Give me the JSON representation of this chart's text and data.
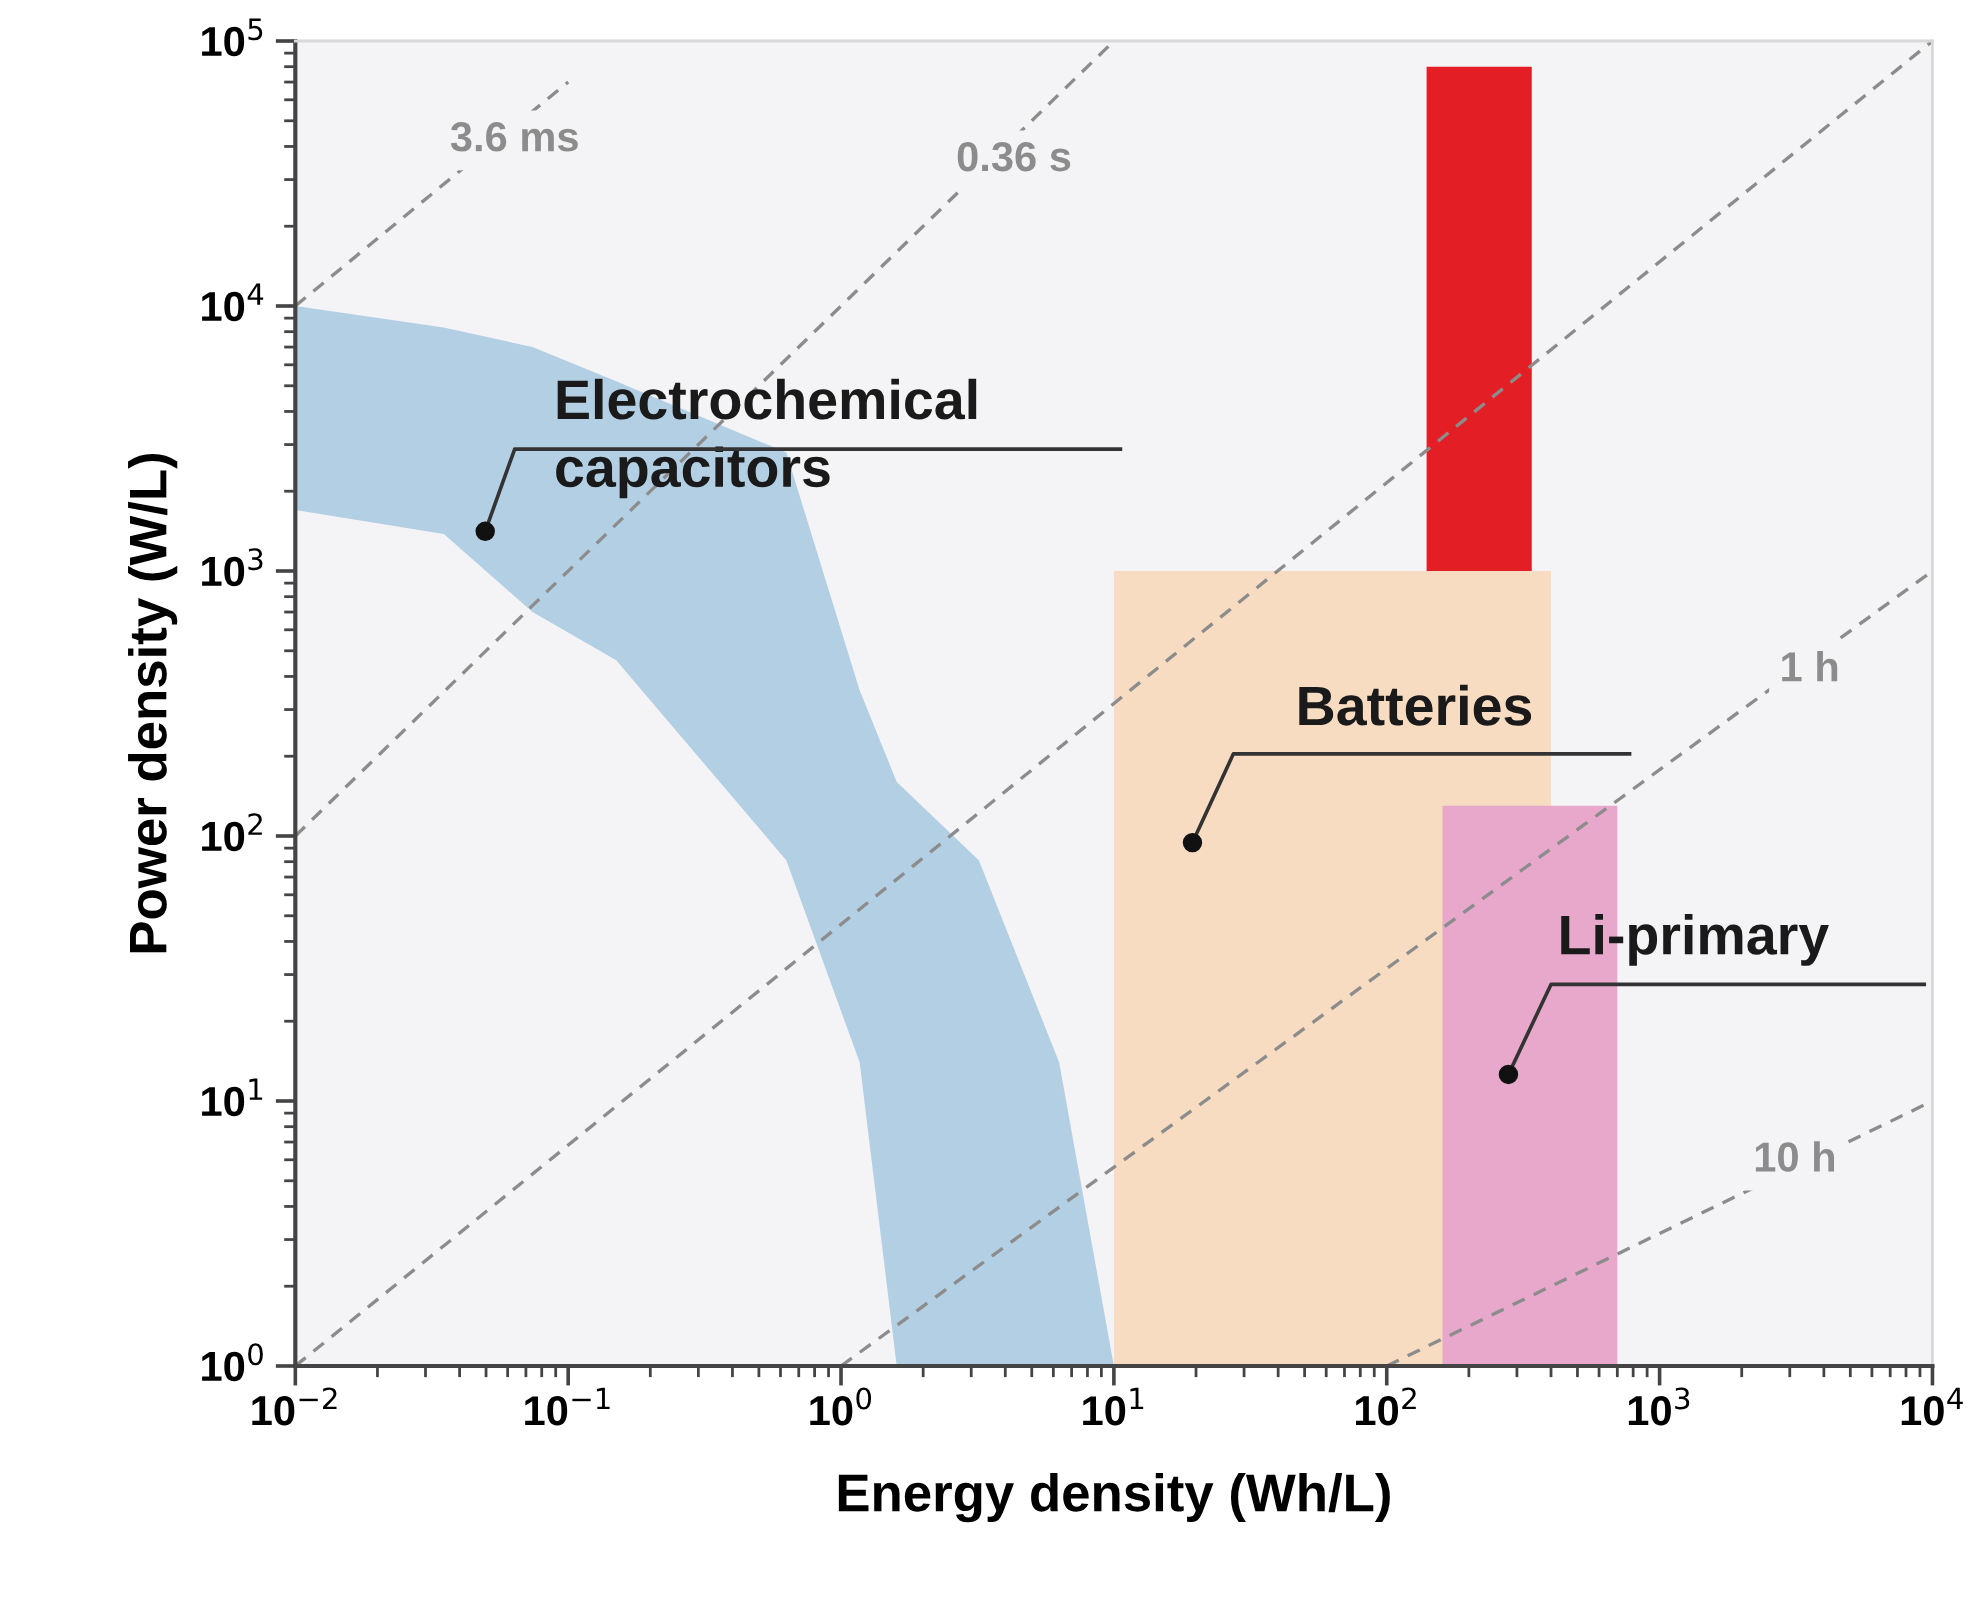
{
  "chart_data": {
    "type": "area",
    "xlabel": "Energy density (Wh/L)",
    "ylabel": "Power density (W/L)",
    "log": "xy",
    "grid": false,
    "xlim": [
      0.01,
      10000
    ],
    "ylim": [
      1,
      100000
    ],
    "xticks": [
      {
        "value": 0.01,
        "label": "10$^{−2}$"
      },
      {
        "value": 0.1,
        "label": "10$^{−1}$"
      },
      {
        "value": 1,
        "label": "10$^{0}$"
      },
      {
        "value": 10,
        "label": "10$^{1}$"
      },
      {
        "value": 100,
        "label": "10$^{2}$"
      },
      {
        "value": 1000,
        "label": "10$^{3}$"
      },
      {
        "value": 10000,
        "label": "10$^{4}$"
      }
    ],
    "yticks": [
      {
        "value": 1,
        "label": "10$^{0}$"
      },
      {
        "value": 10,
        "label": "10$^{1}$"
      },
      {
        "value": 100,
        "label": "10$^{2}$"
      },
      {
        "value": 1000,
        "label": "10$^{3}$"
      },
      {
        "value": 10000,
        "label": "10$^{4}$"
      },
      {
        "value": 100000,
        "label": "10$^{5}$"
      }
    ],
    "series": [
      {
        "name": "Electrochemical\ncapacitors",
        "color": "#b3cfe4",
        "x": [
          0.01,
          0.035,
          0.074,
          0.15,
          0.63,
          1.17,
          1.6,
          3.2,
          6.3,
          10
        ],
        "values": [
          10000,
          8300,
          7000,
          5200,
          2800,
          355,
          160,
          81,
          14,
          1
        ]
      },
      {
        "color": "#f4f4f6",
        "x": [
          0.01,
          0.035,
          0.074,
          0.15,
          0.63,
          1.17,
          1.6
        ],
        "values": [
          1700,
          1380,
          700,
          460,
          81,
          14,
          1
        ]
      },
      {
        "name": "Batteries",
        "color": "#f8dcc2",
        "x": [
          10,
          400
        ],
        "values": [
          1000,
          1000
        ]
      },
      {
        "name": "Li-primary",
        "color": "#e8a8cc",
        "x": [
          160,
          700
        ],
        "values": [
          130,
          130
        ]
      },
      {
        "name": "3.6 ms",
        "type": "line",
        "color": "#8c8c8c",
        "line_style": "dashed",
        "x": [
          0.01,
          0.1
        ],
        "values": [
          10000,
          70000
        ]
      },
      {
        "name": "0.36 s",
        "type": "line",
        "color": "#8c8c8c",
        "line_style": "dashed",
        "x": [
          0.01,
          10
        ],
        "values": [
          100,
          100000
        ]
      },
      {
        "type": "line",
        "color": "#8c8c8c",
        "line_style": "dashed",
        "x": [
          0.01,
          10000
        ],
        "values": [
          1,
          100000
        ]
      },
      {
        "name": "1 h",
        "type": "line",
        "color": "#8c8c8c",
        "line_style": "dashed",
        "x": [
          1,
          10000
        ],
        "values": [
          1,
          1000
        ]
      },
      {
        "name": "10 h",
        "type": "line",
        "color": "#8c8c8c",
        "line_style": "dashed",
        "x": [
          100,
          10000
        ],
        "values": [
          1,
          10
        ]
      },
      {
        "color": "#e31e24",
        "x": [
          140,
          340
        ],
        "values": [
          80000,
          80000
        ]
      }
    ]
  }
}
